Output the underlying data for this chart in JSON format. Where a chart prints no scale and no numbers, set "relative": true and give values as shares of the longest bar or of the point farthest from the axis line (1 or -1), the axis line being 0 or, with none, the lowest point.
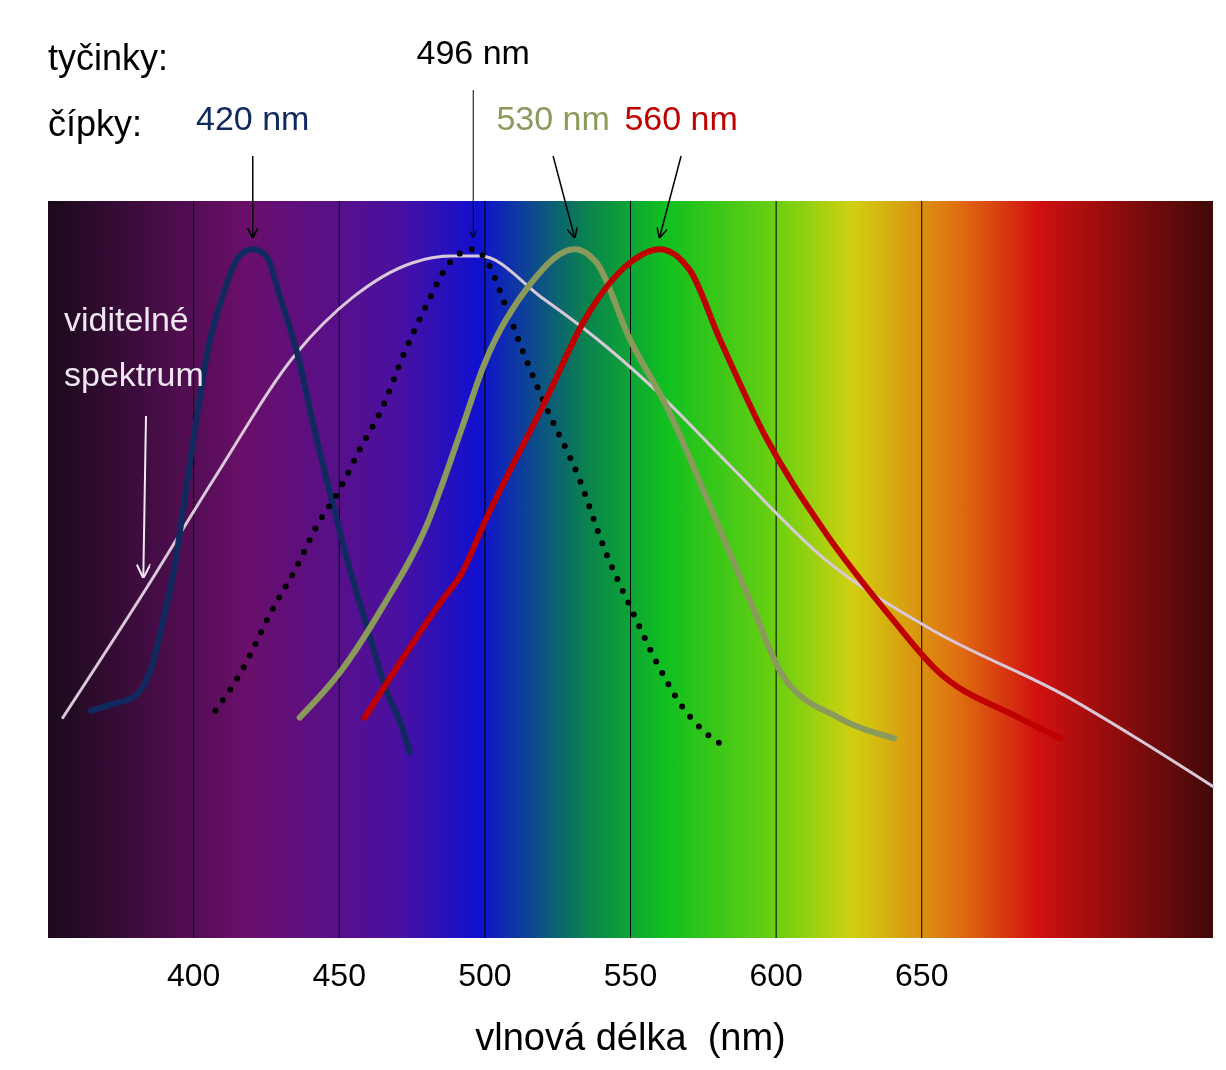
{
  "chart_data": {
    "type": "line",
    "relative": true,
    "xlabel": "vlnová délka  (nm)",
    "xlim": [
      350,
      750
    ],
    "xticks": [
      400,
      450,
      500,
      550,
      600,
      650
    ],
    "grid": "x",
    "legend": false,
    "annotations": [
      "tyčinky:",
      "čípky:"
    ],
    "series": [
      {
        "name": "viditelné spektrum",
        "color": "#d8c8d8",
        "line_style": "solid",
        "x": [
          355.1,
          384.1,
          407.5,
          435.5,
          454.6,
          475,
          488.3,
          498.5,
          519.5,
          538.4,
          557.4,
          583.2,
          616.7,
          652.4,
          700,
          723.8,
          750
        ],
        "values": [
          0.32,
          0.51,
          0.67,
          0.85,
          0.93,
          0.98,
          0.99,
          0.99,
          0.93,
          0.87,
          0.8,
          0.69,
          0.55,
          0.45,
          0.35,
          0.29,
          0.22
        ]
      },
      {
        "name": "420 nm",
        "color": "#102a60",
        "line_style": "solid",
        "x": [
          364.7,
          372.4,
          379.4,
          385.3,
          390,
          393.5,
          397,
          400.5,
          404.7,
          409.8,
          415.7,
          420.3,
          425,
          429.7,
          435.5,
          441.4,
          447.2,
          453.3,
          459.7,
          466.1,
          471.2,
          474.2
        ],
        "values": [
          0.33,
          0.34,
          0.35,
          0.39,
          0.47,
          0.54,
          0.64,
          0.74,
          0.85,
          0.93,
          0.99,
          1,
          0.99,
          0.93,
          0.85,
          0.74,
          0.64,
          0.54,
          0.45,
          0.36,
          0.31,
          0.27
        ]
      },
      {
        "name": "496 nm",
        "color": "#000000",
        "line_style": "dotted",
        "x": [
          407.5,
          416.8,
          426.2,
          435.5,
          442.5,
          450,
          457.1,
          464.8,
          472.4,
          480.1,
          487.8,
          496,
          501,
          506.9,
          513.2,
          521.1,
          532.1,
          541.5,
          550,
          559,
          567.1,
          575.2,
          581.6
        ],
        "values": [
          0.33,
          0.39,
          0.47,
          0.54,
          0.6,
          0.65,
          0.71,
          0.77,
          0.85,
          0.92,
          0.98,
          1,
          0.98,
          0.92,
          0.85,
          0.77,
          0.67,
          0.56,
          0.48,
          0.4,
          0.34,
          0.3,
          0.28
        ]
      },
      {
        "name": "530 nm",
        "color": "#8a9a5b",
        "line_style": "solid",
        "x": [
          436.4,
          451,
          464.8,
          480.1,
          492.1,
          499.5,
          515.7,
          530.8,
          538.4,
          549.7,
          562.6,
          578,
          591,
          602.4,
          621.4,
          640.5
        ],
        "values": [
          0.32,
          0.39,
          0.48,
          0.6,
          0.74,
          0.83,
          0.95,
          1,
          0.98,
          0.87,
          0.77,
          0.62,
          0.49,
          0.38,
          0.32,
          0.29
        ]
      },
      {
        "name": "560 nm",
        "color": "#c00000",
        "line_style": "solid",
        "x": [
          458.7,
          485.2,
          492.1,
          499.5,
          520.8,
          534.6,
          549.7,
          560,
          570.3,
          580.6,
          596.1,
          616.7,
          640.5,
          654.8,
          683.3,
          697.6
        ],
        "values": [
          0.32,
          0.49,
          0.53,
          0.6,
          0.78,
          0.9,
          0.98,
          1,
          0.97,
          0.87,
          0.73,
          0.59,
          0.46,
          0.39,
          0.32,
          0.29
        ]
      }
    ]
  }
}
